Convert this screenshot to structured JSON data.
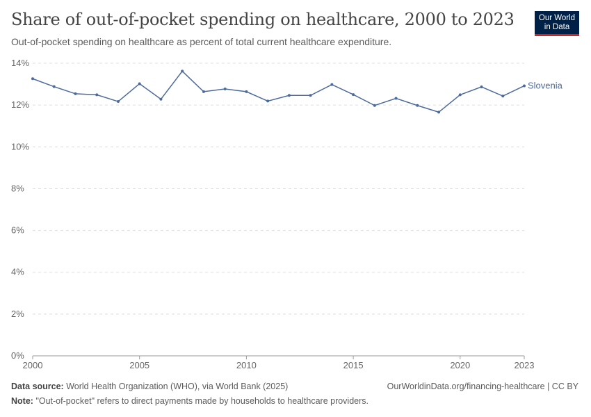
{
  "title": "Share of out-of-pocket spending on healthcare, 2000 to 2023",
  "subtitle": "Out-of-pocket spending on healthcare as percent of total current healthcare expenditure.",
  "logo": "Our World in Data",
  "footer": {
    "source_label": "Data source:",
    "source": "World Health Organization (WHO), via World Bank (2025)",
    "url": "OurWorldinData.org/financing-healthcare | CC BY",
    "note_label": "Note:",
    "note": "\"Out-of-pocket\" refers to direct payments made by households to healthcare providers."
  },
  "chart_data": {
    "type": "line",
    "title": "Share of out-of-pocket spending on healthcare, 2000 to 2023",
    "xlim": [
      2000,
      2023
    ],
    "ylim": [
      0,
      14
    ],
    "grid": true,
    "x_ticks": [
      2000,
      2005,
      2010,
      2015,
      2020,
      2023
    ],
    "y_ticks": [
      "0%",
      "2%",
      "4%",
      "6%",
      "8%",
      "10%",
      "12%",
      "14%"
    ],
    "colors": {
      "Slovenia": "#4c6a9c"
    },
    "series": [
      {
        "name": "Slovenia",
        "x": [
          2000,
          2001,
          2002,
          2003,
          2004,
          2005,
          2006,
          2007,
          2008,
          2009,
          2010,
          2011,
          2012,
          2013,
          2014,
          2015,
          2016,
          2017,
          2018,
          2019,
          2020,
          2021,
          2022,
          2023
        ],
        "values": [
          13.26,
          12.88,
          12.54,
          12.49,
          12.17,
          13.02,
          12.28,
          13.62,
          12.64,
          12.77,
          12.64,
          12.19,
          12.46,
          12.46,
          12.98,
          12.5,
          11.98,
          12.32,
          11.98,
          11.66,
          12.49,
          12.87,
          12.43,
          12.92
        ]
      }
    ]
  }
}
